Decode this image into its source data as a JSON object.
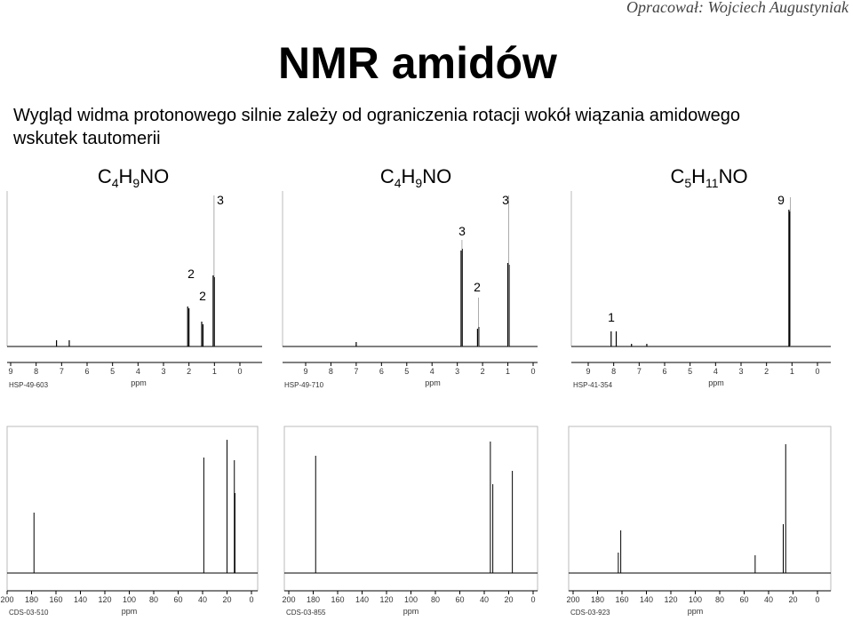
{
  "header": {
    "author": "Opracował: Wojciech Augustyniak",
    "title": "NMR amidów"
  },
  "description": {
    "lines": [
      "Wygląd widma protonowego silnie zależy od ograniczenia rotacji wokół wiązania amidowego",
      "wskutek tautomerii"
    ]
  },
  "h_spectra": [
    {
      "formula": [
        {
          "text": "C"
        },
        {
          "sub": "4"
        },
        {
          "text": "H"
        },
        {
          "sub": "9"
        },
        {
          "text": "NO"
        }
      ],
      "integrals": [
        3,
        2,
        2
      ],
      "ticks": [
        9,
        8,
        7,
        6,
        5,
        4,
        3,
        2,
        1,
        0
      ],
      "unit": "ppm",
      "code": "HSP-49-603"
    },
    {
      "formula": [
        {
          "text": "C"
        },
        {
          "sub": "4"
        },
        {
          "text": "H"
        },
        {
          "sub": "9"
        },
        {
          "text": "NO"
        }
      ],
      "integrals": [
        3,
        3,
        2
      ],
      "ticks": [
        9,
        8,
        7,
        6,
        5,
        4,
        3,
        2,
        1,
        0
      ],
      "unit": "ppm",
      "code": "HSP-49-710"
    },
    {
      "formula": [
        {
          "text": "C"
        },
        {
          "sub": "5"
        },
        {
          "text": "H"
        },
        {
          "sub": "11"
        },
        {
          "text": "NO"
        }
      ],
      "integrals": [
        9,
        1
      ],
      "ticks": [
        9,
        8,
        7,
        6,
        5,
        4,
        3,
        2,
        1,
        0
      ],
      "unit": "ppm",
      "code": "HSP-41-354"
    }
  ],
  "c_spectra": [
    {
      "ticks": [
        200,
        180,
        160,
        140,
        120,
        100,
        80,
        60,
        40,
        20,
        0
      ],
      "unit": "ppm",
      "code": "CDS-03-510"
    },
    {
      "ticks": [
        200,
        180,
        160,
        140,
        120,
        100,
        80,
        60,
        40,
        20,
        0
      ],
      "unit": "ppm",
      "code": "CDS-03-855"
    },
    {
      "ticks": [
        200,
        180,
        160,
        140,
        120,
        100,
        80,
        60,
        40,
        20,
        0
      ],
      "unit": "ppm",
      "code": "CDS-03-923"
    }
  ]
}
